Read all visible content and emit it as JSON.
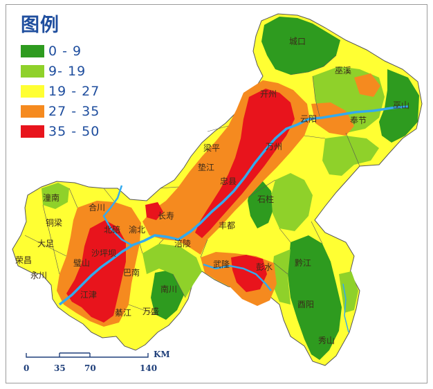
{
  "legend": {
    "title": "图例",
    "classes": [
      {
        "label": "0 - 9",
        "color": "#2e9b1f"
      },
      {
        "label": "9- 19",
        "color": "#8fd12a"
      },
      {
        "label": "19 - 27",
        "color": "#ffff33"
      },
      {
        "label": "27 - 35",
        "color": "#f58a1f"
      },
      {
        "label": "35 - 50",
        "color": "#e8141c"
      }
    ]
  },
  "places": {
    "chengkou": "城口",
    "wuxi": "巫溪",
    "wushan": "巫山",
    "kaizhou": "开州",
    "yunyang": "云阳",
    "fengjie": "奉节",
    "liangping": "梁平",
    "wanzhou": "万州",
    "dianjiang": "垫江",
    "zhongxian": "忠县",
    "shizhu": "石柱",
    "tongnan": "潼南",
    "hechuan": "合川",
    "tongliang": "铜梁",
    "beibei": "北碚",
    "yubei": "渝北",
    "changshou": "长寿",
    "fengdu": "丰都",
    "dazu": "大足",
    "shapingba": "沙坪坝",
    "fuling": "涪陵",
    "rongchang": "荣昌",
    "bishan": "璧山",
    "yongchuan": "永川",
    "wulong": "武隆",
    "pengshui": "彭水",
    "qianjiang": "黔江",
    "jiangjin": "江津",
    "banan": "巴南",
    "nanchuan": "南川",
    "qijiang": "綦江",
    "wansheng": "万盛",
    "youyang": "酉阳",
    "xiushan": "秀山"
  },
  "scale_bar": {
    "ticks": [
      "0",
      "35",
      "70",
      "140"
    ],
    "unit": "KM"
  }
}
